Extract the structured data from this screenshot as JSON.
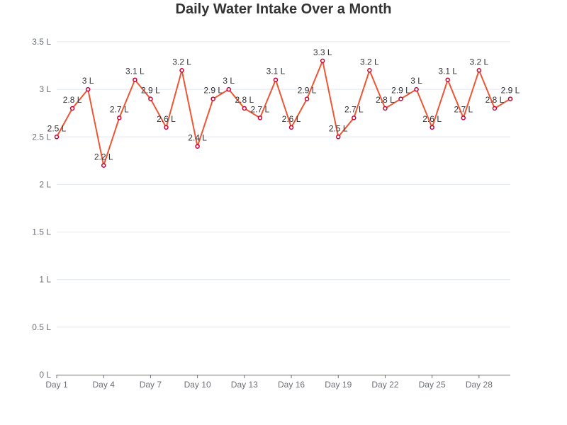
{
  "chart_data": {
    "type": "line",
    "title": "Daily Water Intake Over a Month",
    "xlabel": "",
    "ylabel": "",
    "x": [
      "Day 1",
      "Day 2",
      "Day 3",
      "Day 4",
      "Day 5",
      "Day 6",
      "Day 7",
      "Day 8",
      "Day 9",
      "Day 10",
      "Day 11",
      "Day 12",
      "Day 13",
      "Day 14",
      "Day 15",
      "Day 16",
      "Day 17",
      "Day 18",
      "Day 19",
      "Day 20",
      "Day 21",
      "Day 22",
      "Day 23",
      "Day 24",
      "Day 25",
      "Day 26",
      "Day 27",
      "Day 28",
      "Day 29",
      "Day 30"
    ],
    "x_tick_labels": [
      "Day 1",
      "Day 4",
      "Day 7",
      "Day 10",
      "Day 13",
      "Day 16",
      "Day 19",
      "Day 22",
      "Day 25",
      "Day 28"
    ],
    "y_tick_labels": [
      "0 L",
      "0.5 L",
      "1 L",
      "1.5 L",
      "2 L",
      "2.5 L",
      "3 L",
      "3.5 L"
    ],
    "ylim": [
      0,
      3.5
    ],
    "unit": "L",
    "series": [
      {
        "values": [
          2.5,
          2.8,
          3,
          2.2,
          2.7,
          3.1,
          2.9,
          2.6,
          3.2,
          2.4,
          2.9,
          3,
          2.8,
          2.7,
          3.1,
          2.6,
          2.9,
          3.3,
          2.5,
          2.7,
          3.2,
          2.8,
          2.9,
          3,
          2.6,
          3.1,
          2.7,
          3.2,
          2.8,
          2.9
        ],
        "labels": [
          "2.5 L",
          "2.8 L",
          "3 L",
          "2.2 L",
          "2.7 L",
          "3.1 L",
          "2.9 L",
          "2.6 L",
          "3.2 L",
          "2.4 L",
          "2.9 L",
          "3 L",
          "2.8 L",
          "2.7 L",
          "3.1 L",
          "2.6 L",
          "2.9 L",
          "3.3 L",
          "2.5 L",
          "2.7 L",
          "3.2 L",
          "2.8 L",
          "2.9 L",
          "3 L",
          "2.6 L",
          "3.1 L",
          "2.7 L",
          "3.2 L",
          "2.8 L",
          "2.9 L"
        ],
        "line_color": "#ee5533",
        "marker_color": "#cc0033"
      }
    ],
    "grid": true,
    "legend": "none"
  }
}
